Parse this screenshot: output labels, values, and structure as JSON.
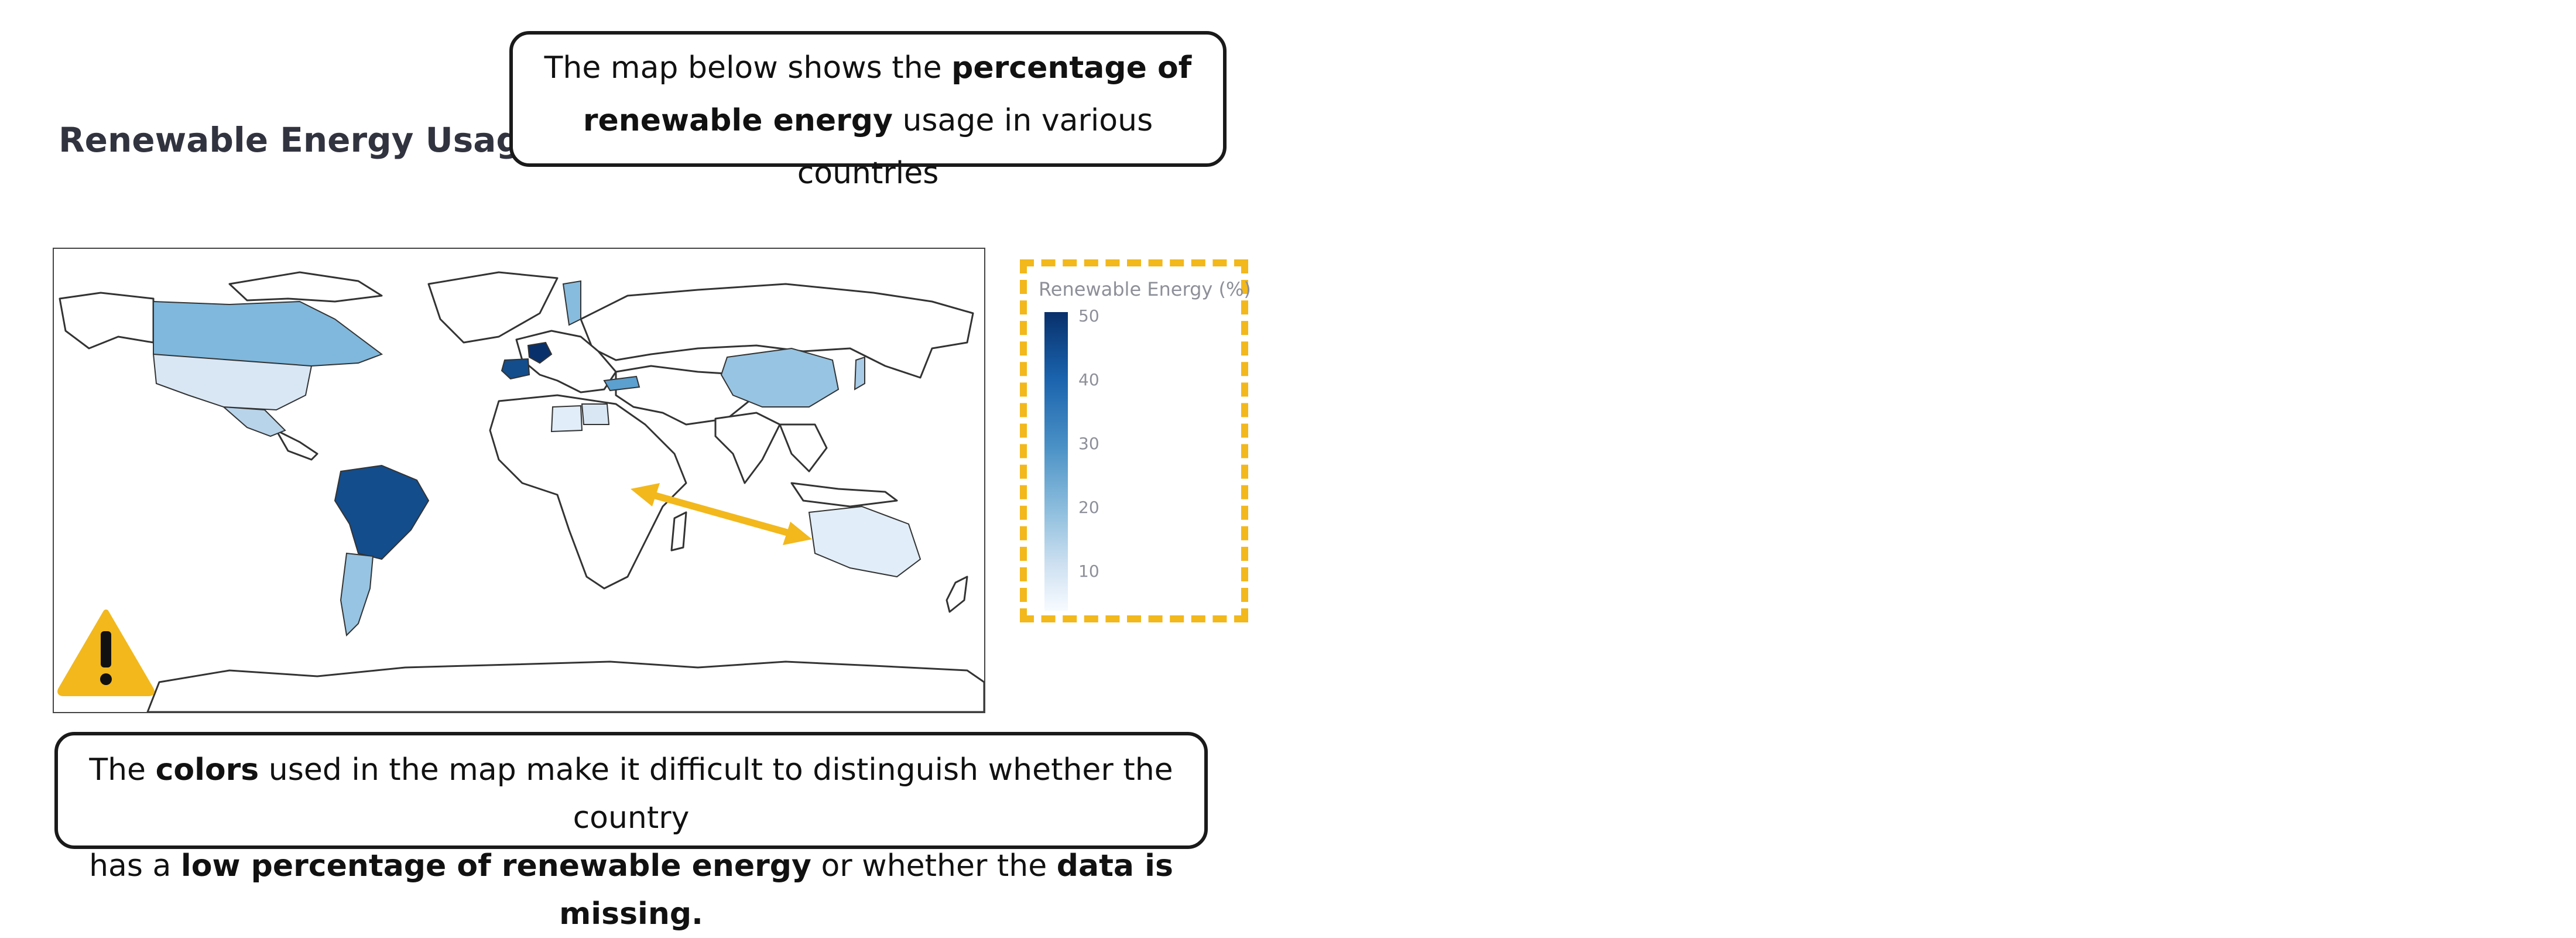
{
  "chart_title": "Renewable Energy Usage",
  "top_callout": {
    "part1": "The map below shows the ",
    "bold1": "percentage of",
    "bold2": "renewable energy",
    "part2": " usage in various countries"
  },
  "bottom_callout": {
    "part1": "The ",
    "bold1": "colors",
    "part2": " used in the map make it difficult to distinguish whether the country",
    "part3": "has a ",
    "bold2": "low percentage of renewable energy",
    "part4": " or whether the ",
    "bold3": "data is missing."
  },
  "legend": {
    "title": "Renewable Energy (%)",
    "ticks": [
      "50",
      "40",
      "30",
      "20",
      "10"
    ]
  },
  "icons": {
    "warning": "warning-icon",
    "arrow": "double-arrow-icon"
  },
  "colors": {
    "annotation": "#f2b81c",
    "scale_high": "#08306b",
    "scale_low": "#f7fbff"
  },
  "map_data": {
    "type": "choropleth",
    "value_field": "Renewable Energy (%)",
    "range": [
      5,
      50
    ],
    "regions": [
      {
        "name": "France",
        "level": 50
      },
      {
        "name": "Spain",
        "level": 45
      },
      {
        "name": "Brazil",
        "level": 45
      },
      {
        "name": "Turkey",
        "level": 30
      },
      {
        "name": "Canada",
        "level": 25
      },
      {
        "name": "Argentina",
        "level": 22
      },
      {
        "name": "China",
        "level": 22
      },
      {
        "name": "Japan",
        "level": 20
      },
      {
        "name": "Mexico",
        "level": 18
      },
      {
        "name": "Sweden",
        "level": 24
      },
      {
        "name": "United States",
        "level": 12
      },
      {
        "name": "Australia",
        "level": 10
      },
      {
        "name": "Egypt",
        "level": 12
      },
      {
        "name": "Libya",
        "level": 10
      }
    ]
  }
}
